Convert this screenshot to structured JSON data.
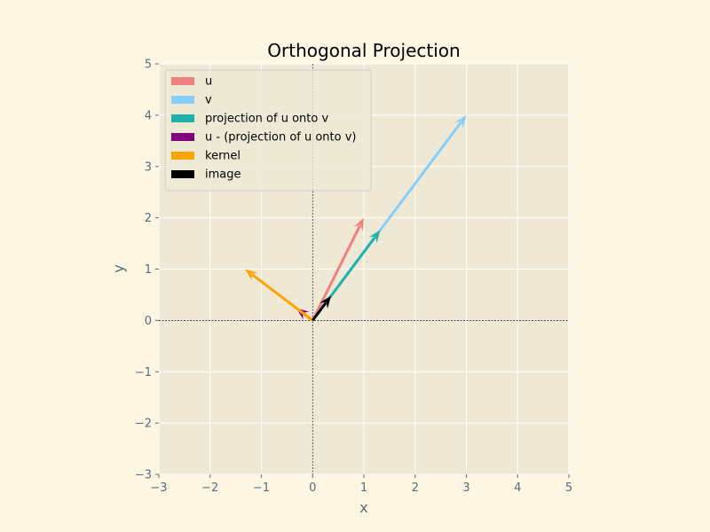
{
  "chart_data": {
    "type": "vector",
    "title": "Orthogonal Projection",
    "xlabel": "x",
    "ylabel": "y",
    "xlim": [
      -3,
      5
    ],
    "ylim": [
      -3,
      5
    ],
    "x_ticks": [
      -3,
      -2,
      -1,
      0,
      1,
      2,
      3,
      4,
      5
    ],
    "y_ticks": [
      -3,
      -2,
      -1,
      0,
      1,
      2,
      3,
      4,
      5
    ],
    "x_tick_labels": [
      "−3",
      "−2",
      "−1",
      "0",
      "1",
      "2",
      "3",
      "4",
      "5"
    ],
    "y_tick_labels": [
      "−3",
      "−2",
      "−1",
      "0",
      "1",
      "2",
      "3",
      "4",
      "5"
    ],
    "grid": true,
    "origin_axes_lines": true,
    "legend_position": "upper-left",
    "colors": {
      "figure_bg": "#fdf6e3",
      "axes_bg": "#eee8d5",
      "grid": "#ffffff",
      "text": "#000000",
      "tick_text": "#586e75",
      "axis_line": "#000000"
    },
    "series": [
      {
        "name": "u",
        "color": "#f08080",
        "from": [
          0,
          0
        ],
        "to": [
          1,
          2
        ]
      },
      {
        "name": "v",
        "color": "#87cefa",
        "from": [
          0,
          0
        ],
        "to": [
          3,
          4
        ]
      },
      {
        "name": "projection of u onto v",
        "color": "#20b2aa",
        "from": [
          0,
          0
        ],
        "to": [
          1.32,
          1.76
        ]
      },
      {
        "name": "u - (projection of u onto v)",
        "color": "#800080",
        "from": [
          0,
          0
        ],
        "to": [
          -0.32,
          0.24
        ]
      },
      {
        "name": "kernel",
        "color": "#ffa500",
        "from": [
          0,
          0
        ],
        "to": [
          -1.32,
          1.0
        ]
      },
      {
        "name": "image",
        "color": "#000000",
        "from": [
          0,
          0
        ],
        "to": [
          0.36,
          0.48
        ]
      }
    ]
  }
}
